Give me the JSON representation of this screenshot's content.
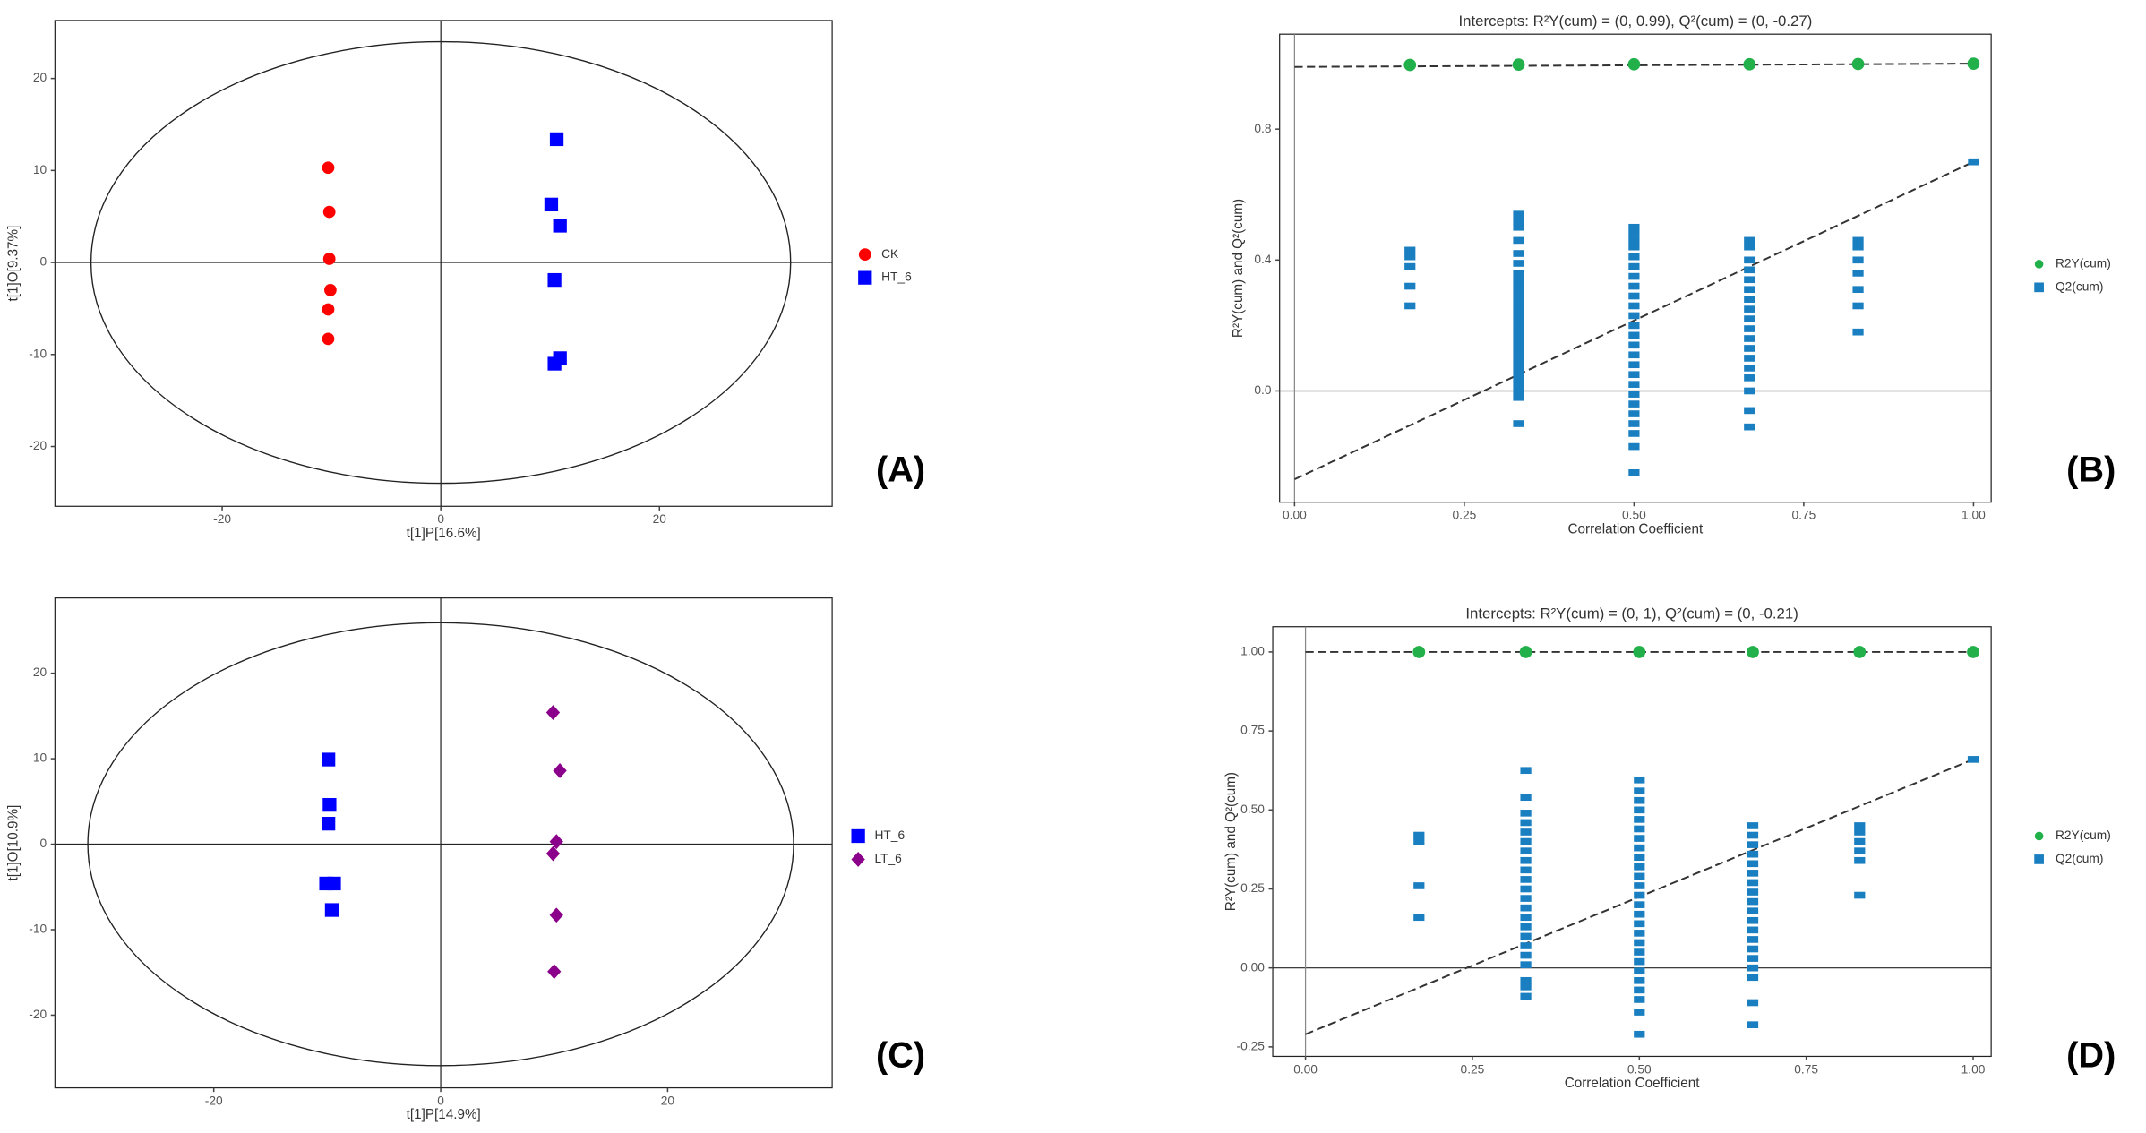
{
  "chart_data": [
    {
      "type": "scatter",
      "panel_label": "(A)",
      "x_label": "t[1]P[16.6%]",
      "y_label": "t[1]O[9.37%]",
      "xlim": [
        -35.3,
        35.8
      ],
      "ylim": [
        -26.5,
        26.3
      ],
      "xticks": [
        -20,
        0,
        20
      ],
      "yticks": [
        -20,
        -10,
        0,
        10,
        20
      ],
      "hline": 0,
      "vline": 0,
      "ellipse": {
        "rx": 32,
        "ry": 24
      },
      "legend": "right",
      "series": [
        {
          "name": "CK",
          "color": "#ff0000",
          "marker": "circle",
          "x": [
            -10.3,
            -10.2,
            -10.2,
            -10.1,
            -10.3,
            -10.3
          ],
          "values": [
            10.3,
            5.5,
            0.4,
            -3.0,
            -5.1,
            -8.3
          ]
        },
        {
          "name": "HT_6",
          "color": "#0000ff",
          "marker": "square",
          "x": [
            10.6,
            10.1,
            10.9,
            10.4,
            10.9,
            10.4
          ],
          "values": [
            13.4,
            6.3,
            4.0,
            -1.9,
            -10.4,
            -11.0
          ]
        }
      ]
    },
    {
      "type": "permutation",
      "panel_label": "(B)",
      "title": "Intercepts: R²Y(cum) = (0, 0.99), Q²(cum) = (0, -0.27)",
      "x_label": "Correlation Coefficient",
      "y_label": "R²Y(cum) and Q²(cum)",
      "xlim": [
        -0.022,
        1.026
      ],
      "ylim": [
        -0.34,
        1.09
      ],
      "xticks": [
        {
          "value": 0,
          "label": "0.00"
        },
        {
          "value": 0.25,
          "label": "0.25"
        },
        {
          "value": 0.5,
          "label": "0.50"
        },
        {
          "value": 0.75,
          "label": "0.75"
        },
        {
          "value": 1,
          "label": "1.00"
        }
      ],
      "yticks": [
        {
          "value": 0,
          "label": "0.0"
        },
        {
          "value": 0.4,
          "label": "0.4"
        },
        {
          "value": 0.8,
          "label": "0.8"
        }
      ],
      "hline": 0,
      "vline": 0,
      "legend": "right",
      "fit_lines": [
        {
          "color": "#333333",
          "x": [
            0,
            1
          ],
          "values": [
            0.99,
            1.0
          ]
        },
        {
          "color": "#333333",
          "x": [
            0,
            1
          ],
          "values": [
            -0.27,
            0.7
          ]
        }
      ],
      "series": [
        {
          "name": "R2Y(cum)",
          "color": "#22b04a",
          "marker": "circle",
          "groups": [
            {
              "x": 0.17,
              "values": [
                0.996
              ]
            },
            {
              "x": 0.33,
              "values": [
                0.997
              ]
            },
            {
              "x": 0.5,
              "values": [
                0.998
              ]
            },
            {
              "x": 0.67,
              "values": [
                0.998
              ]
            },
            {
              "x": 0.83,
              "values": [
                0.999
              ]
            },
            {
              "x": 1,
              "values": [
                1.0
              ]
            }
          ]
        },
        {
          "name": "Q2(cum)",
          "color": "#1a7fc1",
          "marker": "bar",
          "groups": [
            {
              "x": 0.17,
              "values": [
                0.43,
                0.41,
                0.38,
                0.32,
                0.26
              ]
            },
            {
              "x": 0.33,
              "values": [
                0.54,
                0.52,
                0.5,
                0.46,
                0.42,
                0.39,
                0.36,
                0.34,
                0.32,
                0.3,
                0.28,
                0.26,
                0.24,
                0.22,
                0.2,
                0.18,
                0.16,
                0.14,
                0.12,
                0.1,
                0.08,
                0.06,
                0.04,
                0.02,
                0.0,
                -0.02,
                -0.1
              ]
            },
            {
              "x": 0.5,
              "values": [
                0.5,
                0.48,
                0.46,
                0.44,
                0.41,
                0.38,
                0.35,
                0.32,
                0.29,
                0.26,
                0.23,
                0.2,
                0.17,
                0.14,
                0.11,
                0.08,
                0.05,
                0.02,
                -0.01,
                -0.04,
                -0.07,
                -0.1,
                -0.13,
                -0.17,
                -0.25
              ]
            },
            {
              "x": 0.67,
              "values": [
                0.46,
                0.44,
                0.4,
                0.37,
                0.34,
                0.31,
                0.28,
                0.25,
                0.22,
                0.19,
                0.16,
                0.13,
                0.1,
                0.07,
                0.04,
                0.0,
                -0.06,
                -0.11
              ]
            },
            {
              "x": 0.83,
              "values": [
                0.46,
                0.44,
                0.4,
                0.36,
                0.31,
                0.26,
                0.18
              ]
            },
            {
              "x": 1,
              "values": [
                0.7
              ]
            }
          ]
        }
      ]
    },
    {
      "type": "scatter",
      "panel_label": "(C)",
      "x_label": "t[1]P[14.9%]",
      "y_label": "t[1]O[10.9%]",
      "xlim": [
        -34,
        34.5
      ],
      "ylim": [
        -28.5,
        28.8
      ],
      "xticks": [
        -20,
        0,
        20
      ],
      "yticks": [
        -20,
        -10,
        0,
        10,
        20
      ],
      "hline": 0,
      "vline": 0,
      "ellipse": {
        "rx": 31.1,
        "ry": 25.9
      },
      "legend": "right",
      "series": [
        {
          "name": "HT_6",
          "color": "#0000ff",
          "marker": "square",
          "x": [
            -9.9,
            -9.8,
            -9.9,
            -10.1,
            -9.4,
            -9.6
          ],
          "values": [
            9.9,
            4.6,
            2.4,
            -4.6,
            -4.6,
            -7.7
          ]
        },
        {
          "name": "LT_6",
          "color": "#8b008b",
          "marker": "diamond",
          "x": [
            9.9,
            10.5,
            10.2,
            9.9,
            10.2,
            10.0
          ],
          "values": [
            15.4,
            8.6,
            0.3,
            -1.1,
            -8.3,
            -14.9
          ]
        }
      ]
    },
    {
      "type": "permutation",
      "panel_label": "(D)",
      "title": "Intercepts: R²Y(cum) = (0, 1), Q²(cum) = (0, -0.21)",
      "x_label": "Correlation Coefficient",
      "y_label": "R²Y(cum) and Q²(cum)",
      "xlim": [
        -0.049,
        1.027
      ],
      "ylim": [
        -0.28,
        1.08
      ],
      "xticks": [
        {
          "value": 0,
          "label": "0.00"
        },
        {
          "value": 0.25,
          "label": "0.25"
        },
        {
          "value": 0.5,
          "label": "0.50"
        },
        {
          "value": 0.75,
          "label": "0.75"
        },
        {
          "value": 1,
          "label": "1.00"
        }
      ],
      "yticks": [
        {
          "value": -0.25,
          "label": "-0.25"
        },
        {
          "value": 0,
          "label": "0.00"
        },
        {
          "value": 0.25,
          "label": "0.25"
        },
        {
          "value": 0.5,
          "label": "0.50"
        },
        {
          "value": 0.75,
          "label": "0.75"
        },
        {
          "value": 1,
          "label": "1.00"
        }
      ],
      "hline": 0,
      "vline": 0,
      "legend": "right",
      "fit_lines": [
        {
          "color": "#333333",
          "x": [
            0,
            1
          ],
          "values": [
            1.0,
            1.0
          ]
        },
        {
          "color": "#333333",
          "x": [
            0,
            1
          ],
          "values": [
            -0.21,
            0.66
          ]
        }
      ],
      "series": [
        {
          "name": "R2Y(cum)",
          "color": "#22b04a",
          "marker": "circle",
          "groups": [
            {
              "x": 0.17,
              "values": [
                1.0
              ]
            },
            {
              "x": 0.33,
              "values": [
                1.0
              ]
            },
            {
              "x": 0.5,
              "values": [
                1.0
              ]
            },
            {
              "x": 0.67,
              "values": [
                1.0
              ]
            },
            {
              "x": 0.83,
              "values": [
                1.0
              ]
            },
            {
              "x": 1,
              "values": [
                1.0
              ]
            }
          ]
        },
        {
          "name": "Q2(cum)",
          "color": "#1a7fc1",
          "marker": "bar",
          "groups": [
            {
              "x": 0.17,
              "values": [
                0.42,
                0.4,
                0.26,
                0.16
              ]
            },
            {
              "x": 0.33,
              "values": [
                0.625,
                0.54,
                0.49,
                0.46,
                0.43,
                0.4,
                0.37,
                0.34,
                0.31,
                0.28,
                0.25,
                0.22,
                0.19,
                0.16,
                0.13,
                0.1,
                0.07,
                0.04,
                0.01,
                -0.04,
                -0.06,
                -0.09
              ]
            },
            {
              "x": 0.5,
              "values": [
                0.595,
                0.56,
                0.53,
                0.5,
                0.47,
                0.44,
                0.41,
                0.38,
                0.35,
                0.32,
                0.29,
                0.26,
                0.23,
                0.2,
                0.17,
                0.14,
                0.11,
                0.08,
                0.05,
                0.02,
                -0.01,
                -0.04,
                -0.07,
                -0.1,
                -0.14,
                -0.21
              ]
            },
            {
              "x": 0.67,
              "values": [
                0.45,
                0.42,
                0.39,
                0.36,
                0.33,
                0.3,
                0.27,
                0.24,
                0.21,
                0.18,
                0.15,
                0.12,
                0.09,
                0.06,
                0.03,
                0.0,
                -0.03,
                -0.11,
                -0.18
              ]
            },
            {
              "x": 0.83,
              "values": [
                0.45,
                0.43,
                0.4,
                0.37,
                0.34,
                0.23
              ]
            },
            {
              "x": 1,
              "values": [
                0.66
              ]
            }
          ]
        }
      ]
    }
  ]
}
